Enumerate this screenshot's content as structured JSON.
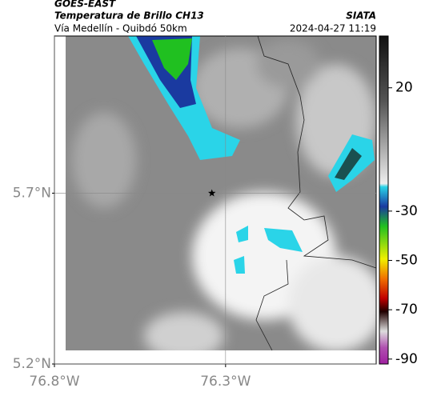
{
  "header": {
    "satellite": "GOES-EAST",
    "product": "Temperatura de Brillo CH13",
    "organization": "SIATA",
    "region": "Vía Medellín - Quibdó 50km",
    "timestamp": "2024-04-27 11:19"
  },
  "map": {
    "xlim": [
      -76.8,
      -75.86
    ],
    "ylim": [
      5.2,
      6.16
    ],
    "xticks": [
      {
        "value": -76.8,
        "label": "76.8°W"
      },
      {
        "value": -76.3,
        "label": "76.3°W"
      }
    ],
    "yticks": [
      {
        "value": 5.2,
        "label": "5.2°N"
      },
      {
        "value": 5.7,
        "label": "5.7°N"
      }
    ],
    "grid": true,
    "marker": {
      "lon": -76.34,
      "lat": 5.7
    }
  },
  "colorbar": {
    "lim": [
      -92,
      41
    ],
    "ticks": [
      20,
      -30,
      -50,
      -70,
      -90
    ]
  }
}
